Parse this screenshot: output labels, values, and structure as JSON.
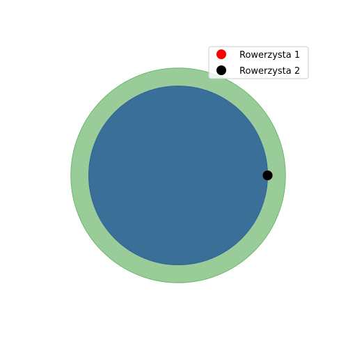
{
  "chart_data": {
    "type": "scatter",
    "title": "",
    "xlabel": "",
    "ylabel": "",
    "axis_visible": false,
    "grid": false,
    "aspect": "equal",
    "xlim": [
      -1.3,
      1.3
    ],
    "ylim": [
      -1.3,
      1.3
    ],
    "circles": [
      {
        "role": "outer-track",
        "cx": 0,
        "cy": 0,
        "r": 1.2,
        "color": "#99cc99",
        "edge_color": "#6ab86a"
      },
      {
        "role": "inner-track",
        "cx": 0,
        "cy": 0,
        "r": 1.0,
        "color": "#3a6f97",
        "edge_color": "#2f62a0"
      }
    ],
    "series": [
      {
        "name": "Rowerzysta 1",
        "color": "#ff0000",
        "x": [
          1.0
        ],
        "y": [
          0.0
        ]
      },
      {
        "name": "Rowerzysta 2",
        "color": "#000000",
        "x": [
          1.0
        ],
        "y": [
          0.0
        ]
      }
    ],
    "legend": {
      "placement": "top-right"
    }
  }
}
